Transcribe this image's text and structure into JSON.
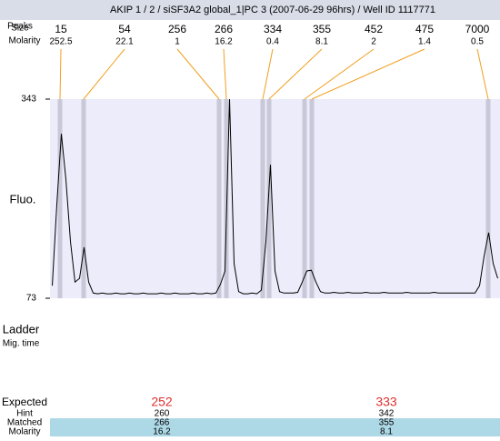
{
  "header": {
    "title": "AKIP 1 / 2 / siSF3A2 global_1|PC 3 (2007-06-29 96hrs) / Well ID 1117771"
  },
  "peaks": {
    "peaks_label": "Peaks",
    "size_label": "Size",
    "molarity_label": "Molarity",
    "items": [
      {
        "size": 15,
        "molarity": 252.5
      },
      {
        "size": 54,
        "molarity": 22.1
      },
      {
        "size": 256,
        "molarity": 1
      },
      {
        "size": 266,
        "molarity": 16.2
      },
      {
        "size": 334,
        "molarity": 0.4
      },
      {
        "size": 355,
        "molarity": 8.1
      },
      {
        "size": 452,
        "molarity": 2
      },
      {
        "size": 475,
        "molarity": 1.4
      },
      {
        "size": 7000,
        "molarity": 0.5
      }
    ]
  },
  "chart_data": {
    "type": "line",
    "ylabel": "Fluo.",
    "ylim": [
      73,
      343
    ],
    "yticks": [
      73,
      343
    ],
    "color": "#000000",
    "values": [
      90,
      200,
      296,
      234,
      150,
      95,
      100,
      142,
      95,
      80,
      79,
      80,
      79,
      79,
      80,
      79,
      79,
      80,
      79,
      79,
      80,
      79,
      79,
      79,
      80,
      79,
      79,
      80,
      79,
      79,
      79,
      80,
      79,
      79,
      80,
      79,
      80,
      92,
      110,
      343,
      120,
      82,
      79,
      79,
      80,
      79,
      84,
      150,
      254,
      110,
      82,
      80,
      80,
      80,
      81,
      95,
      110,
      111,
      95,
      82,
      80,
      80,
      81,
      80,
      80,
      81,
      80,
      80,
      80,
      81,
      80,
      80,
      80,
      81,
      80,
      80,
      80,
      80,
      81,
      80,
      80,
      80,
      80,
      80,
      81,
      80,
      80,
      80,
      80,
      80,
      80,
      80,
      80,
      80,
      90,
      130,
      162,
      120,
      100
    ]
  },
  "ladder": {
    "label": "Ladder",
    "mig_label": "Mig. time"
  },
  "expected": {
    "label": "Expected",
    "values": [
      252,
      333
    ],
    "rows": [
      {
        "label": "Hint",
        "values": [
          260,
          342
        ]
      },
      {
        "label": "Matched",
        "values": [
          266,
          355
        ]
      },
      {
        "label": "Molarity",
        "values": [
          16.2,
          8.1
        ]
      }
    ]
  }
}
